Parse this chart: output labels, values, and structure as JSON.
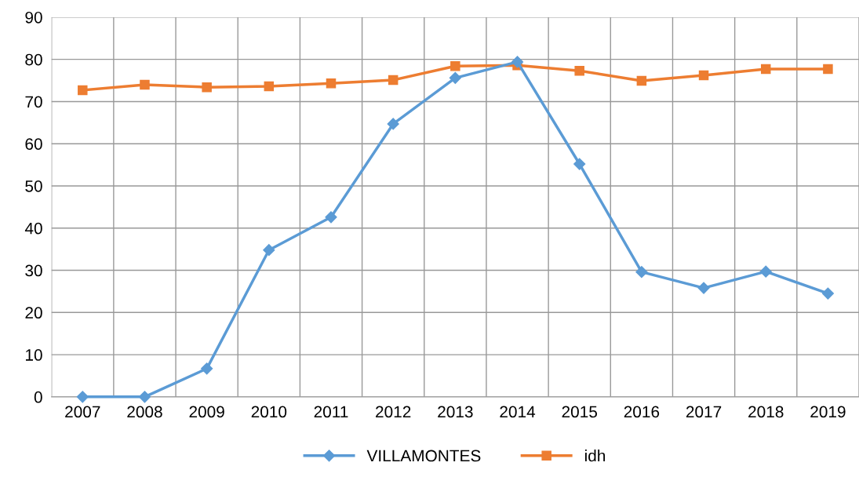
{
  "chart_data": {
    "type": "line",
    "categories": [
      "2007",
      "2008",
      "2009",
      "2010",
      "2011",
      "2012",
      "2013",
      "2014",
      "2015",
      "2016",
      "2017",
      "2018",
      "2019"
    ],
    "series": [
      {
        "name": "VILLAMONTES",
        "color": "#5b9bd5",
        "marker": "diamond",
        "values": [
          0,
          0,
          6.7,
          34.8,
          42.6,
          64.7,
          75.6,
          79.4,
          55.2,
          29.6,
          25.8,
          29.7,
          24.5
        ]
      },
      {
        "name": "idh",
        "color": "#ed7d31",
        "marker": "square",
        "values": [
          72.7,
          74.0,
          73.4,
          73.6,
          74.3,
          75.1,
          78.4,
          78.6,
          77.3,
          74.9,
          76.2,
          77.7,
          77.7
        ]
      }
    ],
    "ylim": [
      0,
      90
    ],
    "yticks": [
      0,
      10,
      20,
      30,
      40,
      50,
      60,
      70,
      80,
      90
    ],
    "grid": true,
    "legend": "bottom",
    "line_style": "solid"
  }
}
